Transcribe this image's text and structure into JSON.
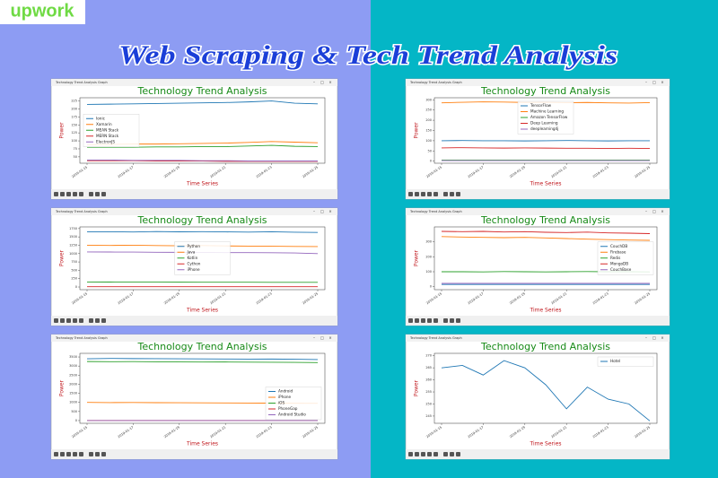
{
  "logo": "upwork",
  "banner_title": "Web Scraping & Tech Trend Analysis",
  "chart_data": [
    {
      "type": "line",
      "window_title": "Technology Trend Analysis Graph",
      "title": "Technology Trend Analysis",
      "xlabel": "Time Series",
      "ylabel": "Power",
      "categories": [
        "2019-01-15",
        null,
        "2019-01-17",
        null,
        "2019-01-19",
        null,
        "2019-01-21",
        null,
        "2019-01-23",
        null,
        "2019-01-25"
      ],
      "ylim": [
        30,
        235
      ],
      "yticks": [
        50,
        75,
        100,
        125,
        150,
        175,
        200,
        225
      ],
      "legend": "center left",
      "series": [
        {
          "name": "Ionic",
          "color": "#1f77b4",
          "values": [
            214,
            215,
            216,
            217,
            218,
            219,
            220,
            222,
            225,
            218,
            216
          ]
        },
        {
          "name": "Xamarin",
          "color": "#ff7f0e",
          "values": [
            88,
            89,
            90,
            90,
            91,
            92,
            93,
            95,
            98,
            96,
            94
          ]
        },
        {
          "name": "MEAN Stack",
          "color": "#2ca02c",
          "values": [
            80,
            80,
            80,
            81,
            81,
            82,
            82,
            84,
            86,
            83,
            82
          ]
        },
        {
          "name": "MERN Stack",
          "color": "#d62728",
          "values": [
            38,
            38,
            38,
            37,
            37,
            37,
            36,
            36,
            36,
            36,
            36
          ]
        },
        {
          "name": "ElectronJS",
          "color": "#9467bd",
          "values": [
            40,
            40,
            39,
            39,
            39,
            38,
            38,
            37,
            37,
            37,
            37
          ]
        }
      ]
    },
    {
      "type": "line",
      "window_title": "Technology Trend Analysis Graph",
      "title": "Technology Trend Analysis",
      "xlabel": "Time Series",
      "ylabel": "Power",
      "categories": [
        "2019-01-15",
        null,
        "2019-01-17",
        null,
        "2019-01-19",
        null,
        "2019-01-21",
        null,
        "2019-01-23",
        null,
        "2019-01-25"
      ],
      "ylim": [
        -10,
        310
      ],
      "yticks": [
        0,
        50,
        100,
        150,
        200,
        250,
        300
      ],
      "legend": "upper center",
      "series": [
        {
          "name": "TensorFlow",
          "color": "#1f77b4",
          "values": [
            100,
            101,
            100,
            100,
            99,
            100,
            101,
            100,
            99,
            100,
            100
          ]
        },
        {
          "name": "Machine Learning",
          "color": "#ff7f0e",
          "values": [
            285,
            288,
            290,
            289,
            287,
            288,
            286,
            287,
            285,
            284,
            286
          ]
        },
        {
          "name": "Amazon TensorFlow",
          "color": "#2ca02c",
          "values": [
            5,
            5,
            5,
            5,
            5,
            5,
            5,
            5,
            5,
            5,
            5
          ]
        },
        {
          "name": "Deep Learning",
          "color": "#d62728",
          "values": [
            65,
            66,
            65,
            64,
            65,
            64,
            63,
            63,
            62,
            63,
            62
          ]
        },
        {
          "name": "deeplearning4j",
          "color": "#9467bd",
          "values": [
            3,
            3,
            3,
            3,
            3,
            3,
            3,
            3,
            3,
            3,
            3
          ]
        }
      ]
    },
    {
      "type": "line",
      "window_title": "Technology Trend Analysis Graph",
      "title": "Technology Trend Analysis",
      "xlabel": "Time Series",
      "ylabel": "Power",
      "categories": [
        "2019-01-15",
        null,
        "2019-01-17",
        null,
        "2019-01-19",
        null,
        "2019-01-21",
        null,
        "2019-01-23",
        null,
        "2019-01-25"
      ],
      "ylim": [
        -80,
        1800
      ],
      "yticks": [
        0,
        250,
        500,
        750,
        1000,
        1250,
        1500,
        1750
      ],
      "legend": "center",
      "series": [
        {
          "name": "Python",
          "color": "#1f77b4",
          "values": [
            1650,
            1655,
            1648,
            1660,
            1652,
            1658,
            1650,
            1645,
            1655,
            1640,
            1635
          ]
        },
        {
          "name": "Java",
          "color": "#ff7f0e",
          "values": [
            1250,
            1245,
            1250,
            1240,
            1235,
            1240,
            1230,
            1225,
            1220,
            1215,
            1210
          ]
        },
        {
          "name": "Kotlin",
          "color": "#2ca02c",
          "values": [
            150,
            148,
            146,
            147,
            145,
            144,
            143,
            142,
            141,
            140,
            140
          ]
        },
        {
          "name": "Cython",
          "color": "#d62728",
          "values": [
            10,
            10,
            10,
            10,
            10,
            10,
            10,
            10,
            10,
            10,
            10
          ]
        },
        {
          "name": "iPhone",
          "color": "#9467bd",
          "values": [
            1050,
            1048,
            1045,
            1040,
            1038,
            1035,
            1030,
            1030,
            1025,
            1020,
            1000
          ]
        }
      ]
    },
    {
      "type": "line",
      "window_title": "Technology Trend Analysis Graph",
      "title": "Technology Trend Analysis",
      "xlabel": "Time Series",
      "ylabel": "Power",
      "categories": [
        "2019-01-15",
        null,
        "2019-01-17",
        null,
        "2019-01-19",
        null,
        "2019-01-21",
        null,
        "2019-01-23",
        null,
        "2019-01-25"
      ],
      "ylim": [
        -20,
        400
      ],
      "yticks": [
        0,
        100,
        200,
        300
      ],
      "legend": "center right",
      "series": [
        {
          "name": "CouchDB",
          "color": "#1f77b4",
          "values": [
            15,
            15,
            15,
            15,
            15,
            15,
            15,
            15,
            15,
            15,
            15
          ]
        },
        {
          "name": "Firebase",
          "color": "#ff7f0e",
          "values": [
            335,
            332,
            330,
            328,
            330,
            326,
            322,
            318,
            315,
            312,
            310
          ]
        },
        {
          "name": "Redis",
          "color": "#2ca02c",
          "values": [
            100,
            100,
            99,
            101,
            100,
            99,
            100,
            101,
            100,
            100,
            99
          ]
        },
        {
          "name": "MongoDB",
          "color": "#d62728",
          "values": [
            370,
            368,
            370,
            366,
            368,
            364,
            362,
            365,
            360,
            358,
            355
          ]
        },
        {
          "name": "CouchBase",
          "color": "#9467bd",
          "values": [
            22,
            22,
            22,
            22,
            22,
            22,
            22,
            22,
            22,
            22,
            22
          ]
        }
      ]
    },
    {
      "type": "line",
      "window_title": "Technology Trend Analysis Graph",
      "title": "Technology Trend Analysis",
      "xlabel": "Time Series",
      "ylabel": "Power",
      "categories": [
        "2019-01-15",
        null,
        "2019-01-17",
        null,
        "2019-01-19",
        null,
        "2019-01-21",
        null,
        "2019-01-23",
        null,
        "2019-01-25"
      ],
      "ylim": [
        -150,
        3700
      ],
      "yticks": [
        0,
        500,
        1000,
        1500,
        2000,
        2500,
        3000,
        3500
      ],
      "legend": "lower right",
      "series": [
        {
          "name": "Android",
          "color": "#1f77b4",
          "values": [
            3400,
            3420,
            3410,
            3405,
            3400,
            3395,
            3390,
            3380,
            3385,
            3375,
            3360
          ]
        },
        {
          "name": "iPhone",
          "color": "#ff7f0e",
          "values": [
            1000,
            990,
            995,
            985,
            980,
            975,
            970,
            965,
            960,
            955,
            950
          ]
        },
        {
          "name": "iOS",
          "color": "#2ca02c",
          "values": [
            3250,
            3240,
            3245,
            3235,
            3230,
            3220,
            3225,
            3215,
            3210,
            3205,
            3190
          ]
        },
        {
          "name": "PhoneGap",
          "color": "#d62728",
          "values": [
            5,
            5,
            5,
            5,
            5,
            5,
            5,
            5,
            5,
            5,
            5
          ]
        },
        {
          "name": "Android Studio",
          "color": "#9467bd",
          "values": [
            0,
            0,
            0,
            0,
            0,
            0,
            0,
            0,
            0,
            0,
            0
          ]
        }
      ]
    },
    {
      "type": "line",
      "window_title": "Technology Trend Analysis Graph",
      "title": "Technology Trend Analysis",
      "xlabel": "Time Series",
      "ylabel": "Power",
      "categories": [
        "2019-01-15",
        null,
        "2019-01-17",
        null,
        "2019-01-19",
        null,
        "2019-01-21",
        null,
        "2019-01-23",
        null,
        "2019-01-25"
      ],
      "ylim": [
        242,
        271
      ],
      "yticks": [
        245,
        250,
        255,
        260,
        265,
        270
      ],
      "legend": "upper right",
      "series": [
        {
          "name": "Hotel",
          "color": "#1f77b4",
          "values": [
            265,
            266,
            262,
            268,
            265,
            258,
            248,
            257,
            252,
            250,
            243
          ]
        }
      ]
    }
  ]
}
